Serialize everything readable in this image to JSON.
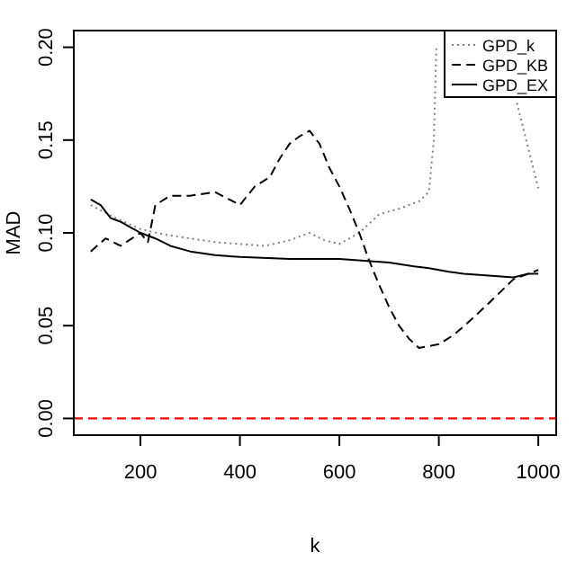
{
  "chart_data": {
    "type": "line",
    "xlabel": "k",
    "ylabel": "MAD",
    "xlim": [
      66,
      1036
    ],
    "ylim": [
      -0.009,
      0.209
    ],
    "xticks": [
      200,
      400,
      600,
      800,
      1000
    ],
    "yticks": [
      {
        "value": 0,
        "label": "0.00"
      },
      {
        "value": 0.05,
        "label": "0.05"
      },
      {
        "value": 0.1,
        "label": "0.10"
      },
      {
        "value": 0.15,
        "label": "0.15"
      },
      {
        "value": 0.2,
        "label": "0.20"
      }
    ],
    "legend": "top right",
    "grid": false,
    "series": [
      {
        "name": "GPD_k",
        "color": "#808080",
        "line_style": "dotted",
        "x": [
          100,
          150,
          200,
          250,
          300,
          350,
          400,
          450,
          500,
          540,
          570,
          600,
          640,
          680,
          720,
          760,
          780,
          790,
          795,
          null,
          957,
          1000
        ],
        "values": [
          0.115,
          0.108,
          0.102,
          0.099,
          0.097,
          0.095,
          0.094,
          0.093,
          0.096,
          0.1,
          0.096,
          0.094,
          0.1,
          0.11,
          0.113,
          0.117,
          0.122,
          0.15,
          0.2,
          null,
          0.17,
          0.124
        ]
      },
      {
        "name": "GPD_KB",
        "color": "#000000",
        "line_style": "dashed",
        "x": [
          100,
          130,
          160,
          200,
          215,
          230,
          260,
          300,
          350,
          400,
          430,
          460,
          480,
          500,
          520,
          540,
          560,
          580,
          600,
          620,
          640,
          660,
          680,
          700,
          720,
          740,
          760,
          780,
          800,
          830,
          860,
          900,
          950,
          1000
        ],
        "values": [
          0.09,
          0.097,
          0.093,
          0.1,
          0.095,
          0.115,
          0.12,
          0.12,
          0.122,
          0.115,
          0.125,
          0.13,
          0.14,
          0.148,
          0.152,
          0.155,
          0.148,
          0.135,
          0.125,
          0.113,
          0.1,
          0.085,
          0.072,
          0.06,
          0.05,
          0.043,
          0.038,
          0.039,
          0.04,
          0.045,
          0.052,
          0.062,
          0.075,
          0.08
        ]
      },
      {
        "name": "GPD_EX",
        "color": "#000000",
        "line_style": "solid",
        "x": [
          100,
          120,
          140,
          160,
          180,
          200,
          230,
          260,
          300,
          350,
          400,
          500,
          600,
          650,
          700,
          750,
          780,
          820,
          850,
          900,
          950,
          980,
          1000
        ],
        "values": [
          0.118,
          0.115,
          0.108,
          0.106,
          0.103,
          0.1,
          0.097,
          0.093,
          0.09,
          0.088,
          0.087,
          0.086,
          0.086,
          0.085,
          0.084,
          0.082,
          0.081,
          0.079,
          0.078,
          0.077,
          0.076,
          0.078,
          0.078
        ]
      }
    ],
    "ref_lines": [
      {
        "axis": "y",
        "value": 0,
        "color": "#ff0000",
        "line_style": "dashed"
      }
    ]
  }
}
